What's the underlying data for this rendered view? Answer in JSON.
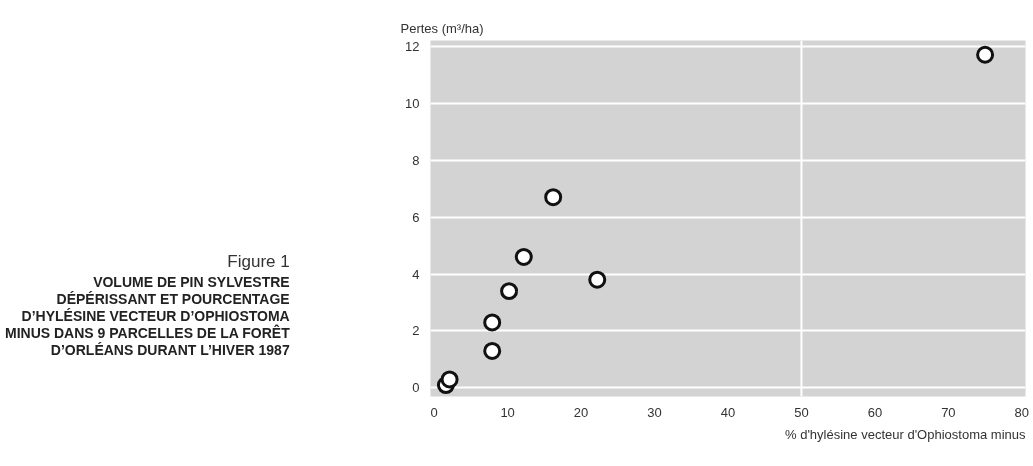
{
  "chart_data": {
    "type": "scatter",
    "subtitle": "Figure 1",
    "title": "VOLUME DE PIN SYLVESTRE DÉPÉRISSANT ET POURCENTAGE D’HYLÉSINE VECTEUR D’OPHIOSTOMA MINUS DANS 9 PARCELLES DE LA FORÊT D’ORLÉANS DURANT L’HIVER 1987",
    "xlabel": "% d'hylésine vecteur d'Ophiostoma minus",
    "ylabel": "Pertes (m³/ha)",
    "x": [
      1.6,
      2.1,
      7.9,
      7.9,
      10.2,
      12.2,
      16.2,
      22.2,
      75
    ],
    "series": [
      {
        "color": "#111111",
        "values": [
          0.1,
          0.3,
          1.3,
          2.3,
          3.4,
          4.6,
          6.7,
          3.8,
          11.7
        ]
      }
    ],
    "marker": "circle",
    "xlim": [
      -0.5,
      80.5
    ],
    "ylim": [
      -0.3,
      12.2
    ],
    "xticks": [
      0,
      10,
      20,
      30,
      40,
      50,
      60,
      70,
      80
    ],
    "yticks": [
      0,
      2,
      4,
      6,
      8,
      10,
      12
    ],
    "grid": "y",
    "ref_lines": [
      {
        "axis": "x",
        "value": 50,
        "color": "#ffffff"
      }
    ]
  }
}
